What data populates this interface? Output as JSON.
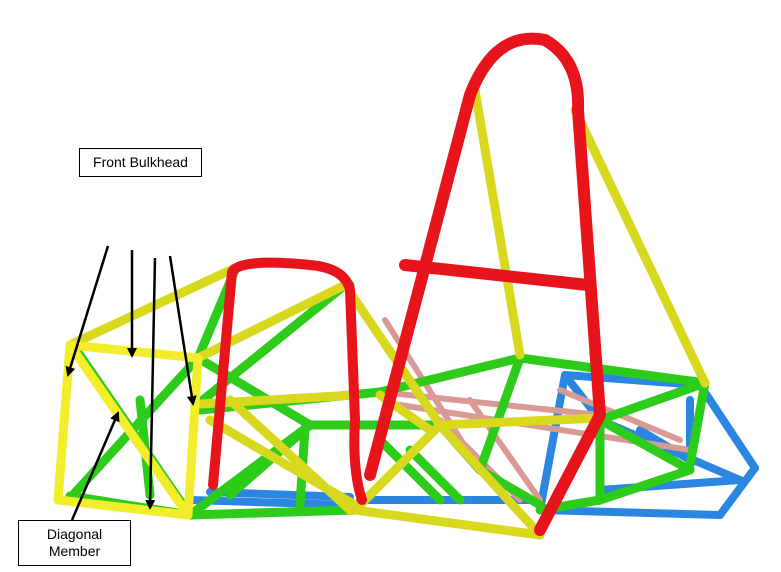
{
  "labels": {
    "front_bulkhead": "Front Bulkhead",
    "diagonal_member_line1": "Diagonal",
    "diagonal_member_line2": "Member"
  },
  "colors": {
    "main_hoop": "#e8141c",
    "front_hoop": "#e8141c",
    "side_members": "#d8d81e",
    "bracing": "#2ecc1a",
    "floor": "#2a86e0",
    "rear_bracing": "#d99a96",
    "arrow": "#000000",
    "bulkhead": "#f2ee2c"
  }
}
